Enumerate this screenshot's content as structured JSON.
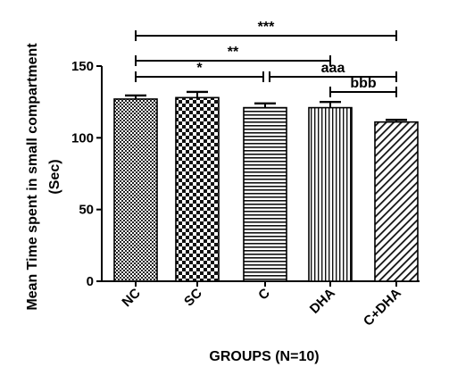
{
  "chart_data": {
    "type": "bar",
    "categories": [
      "NC",
      "SC",
      "C",
      "DHA",
      "C+DHA"
    ],
    "values": [
      127,
      128,
      121,
      121,
      111
    ],
    "errors": [
      2.5,
      4,
      3,
      4,
      1.5
    ],
    "xlabel": "GROUPS (N=10)",
    "ylabel_line1": "Mean Time spent in small compartment",
    "ylabel_line2": "(Sec)",
    "ylim": [
      0,
      150
    ],
    "yticks": [
      "0",
      "50",
      "100",
      "150"
    ],
    "bar_patterns": [
      "fine-checker",
      "coarse-checker",
      "horizontal-lines",
      "vertical-lines",
      "diagonal-lines"
    ],
    "significance": [
      {
        "label": "***",
        "from": "NC",
        "to": "C+DHA"
      },
      {
        "label": "**",
        "from": "NC",
        "to": "DHA"
      },
      {
        "label": "*",
        "from": "NC",
        "to": "C"
      },
      {
        "label": "aaa",
        "from": "C",
        "to": "C+DHA"
      },
      {
        "label": "bbb",
        "from": "DHA",
        "to": "C+DHA"
      }
    ]
  }
}
